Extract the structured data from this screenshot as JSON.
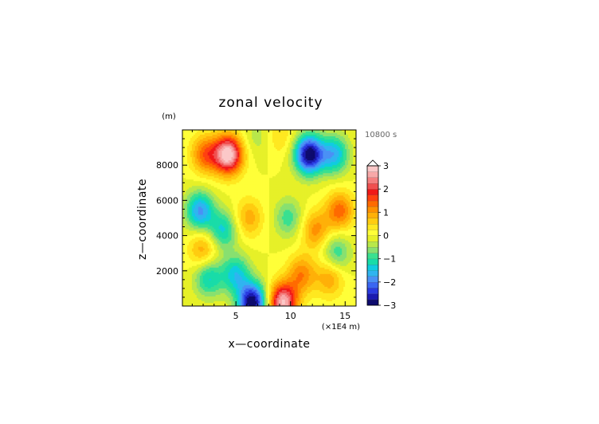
{
  "chart_data": {
    "type": "heatmap",
    "title": "zonal velocity",
    "xlabel": "x—coordinate",
    "ylabel": "z—coordinate",
    "x_unit": "(×1E4 m)",
    "y_unit": "(m)",
    "time_label": "10800 s",
    "xlim": [
      0.1,
      16
    ],
    "ylim": [
      0,
      10000
    ],
    "x_ticks": [
      5,
      10,
      15
    ],
    "y_ticks": [
      2000,
      4000,
      6000,
      8000
    ],
    "colorbar": {
      "levels": [
        -3.5,
        -3.25,
        -3,
        -2.75,
        -2.5,
        -2.25,
        -2,
        -1.75,
        -1.5,
        -1.25,
        -1,
        -0.75,
        -0.5,
        -0.25,
        0,
        0.25,
        0.5,
        0.75,
        1,
        1.25,
        1.5,
        1.75,
        2,
        2.25,
        2.5,
        2.75,
        3,
        3.25,
        3.5
      ],
      "tick_values": [
        3,
        2,
        1,
        0,
        -1,
        -2,
        -3
      ],
      "tick_labels": [
        "3",
        "2",
        "1",
        "0",
        "−1",
        "−2",
        "−3"
      ],
      "colors": [
        "#0d0b6e",
        "#1a1ab0",
        "#2a3be0",
        "#3a66f2",
        "#4a90f5",
        "#30b4f0",
        "#10cce0",
        "#18dca8",
        "#3ae090",
        "#88e070",
        "#b8e84a",
        "#e6f028",
        "#ffff38",
        "#ffe820",
        "#ffcc10",
        "#ffb008",
        "#ff9000",
        "#ff6a00",
        "#ff4010",
        "#f01818",
        "#f05050",
        "#f48080",
        "#f8a8a8",
        "#fbc8c8"
      ]
    },
    "features": [
      {
        "x": 4.3,
        "z": 8600,
        "value": 3.0
      },
      {
        "x": 11.7,
        "z": 8600,
        "value": -3.0
      },
      {
        "x": 6.5,
        "z": 200,
        "value": -3.0
      },
      {
        "x": 9.3,
        "z": 200,
        "value": 2.8
      },
      {
        "x": 2.2,
        "z": 8600,
        "value": 1.4
      },
      {
        "x": 14.0,
        "z": 8600,
        "value": -1.6
      },
      {
        "x": 1.7,
        "z": 5400,
        "value": -1.8
      },
      {
        "x": 14.5,
        "z": 5400,
        "value": 1.4
      },
      {
        "x": 3.8,
        "z": 4300,
        "value": -1.3
      },
      {
        "x": 12.3,
        "z": 4300,
        "value": 1.1
      },
      {
        "x": 2.0,
        "z": 3200,
        "value": 1.0
      },
      {
        "x": 14.2,
        "z": 3000,
        "value": -1.0
      },
      {
        "x": 5.0,
        "z": 1800,
        "value": -1.4
      },
      {
        "x": 11.0,
        "z": 1800,
        "value": 1.2
      },
      {
        "x": 2.5,
        "z": 1600,
        "value": -1.3
      },
      {
        "x": 13.6,
        "z": 1600,
        "value": 1.0
      },
      {
        "x": 6.2,
        "z": 5000,
        "value": 0.9
      },
      {
        "x": 9.8,
        "z": 5000,
        "value": -0.9
      },
      {
        "x": 7.0,
        "z": 9600,
        "value": -0.4
      },
      {
        "x": 9.0,
        "z": 9600,
        "value": 0.5
      }
    ]
  }
}
